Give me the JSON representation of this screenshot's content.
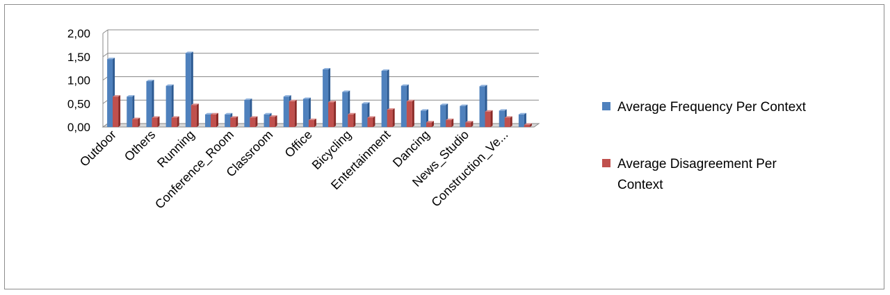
{
  "chart_data": {
    "type": "bar",
    "style": "3d-clustered-column",
    "ylim": [
      0,
      2
    ],
    "yticks": [
      "0,00",
      "0,50",
      "1,00",
      "1,50",
      "2,00"
    ],
    "ytick_values": [
      0,
      0.5,
      1.0,
      1.5,
      2.0
    ],
    "grid": true,
    "legend_position": "right",
    "categories": [
      "Outdoor",
      "",
      "Others",
      "",
      "Running",
      "",
      "Conference_Room",
      "",
      "Classroom",
      "",
      "Office",
      "",
      "Bicycling",
      "",
      "Entertainment",
      "",
      "Dancing",
      "",
      "News_Studio",
      "",
      "Construction_Ve...",
      ""
    ],
    "series": [
      {
        "name": "Average Frequency Per Context",
        "color": "#4f81bd",
        "values": [
          1.45,
          0.65,
          0.98,
          0.88,
          1.58,
          0.27,
          0.27,
          0.58,
          0.27,
          0.65,
          0.6,
          1.23,
          0.75,
          0.5,
          1.2,
          0.88,
          0.35,
          0.47,
          0.45,
          0.87,
          0.35,
          0.27
        ]
      },
      {
        "name": "Average Disagreement Per Context",
        "color": "#c0504d",
        "values": [
          0.65,
          0.17,
          0.2,
          0.2,
          0.47,
          0.27,
          0.2,
          0.2,
          0.22,
          0.55,
          0.15,
          0.53,
          0.27,
          0.2,
          0.37,
          0.55,
          0.1,
          0.15,
          0.1,
          0.33,
          0.2,
          0.05
        ]
      }
    ]
  },
  "legend": {
    "items": [
      {
        "lines": [
          "Average Frequency Per Context"
        ],
        "color": "#4f81bd"
      },
      {
        "lines": [
          "Average Disagreement Per",
          "Context"
        ],
        "color": "#c0504d"
      }
    ]
  }
}
